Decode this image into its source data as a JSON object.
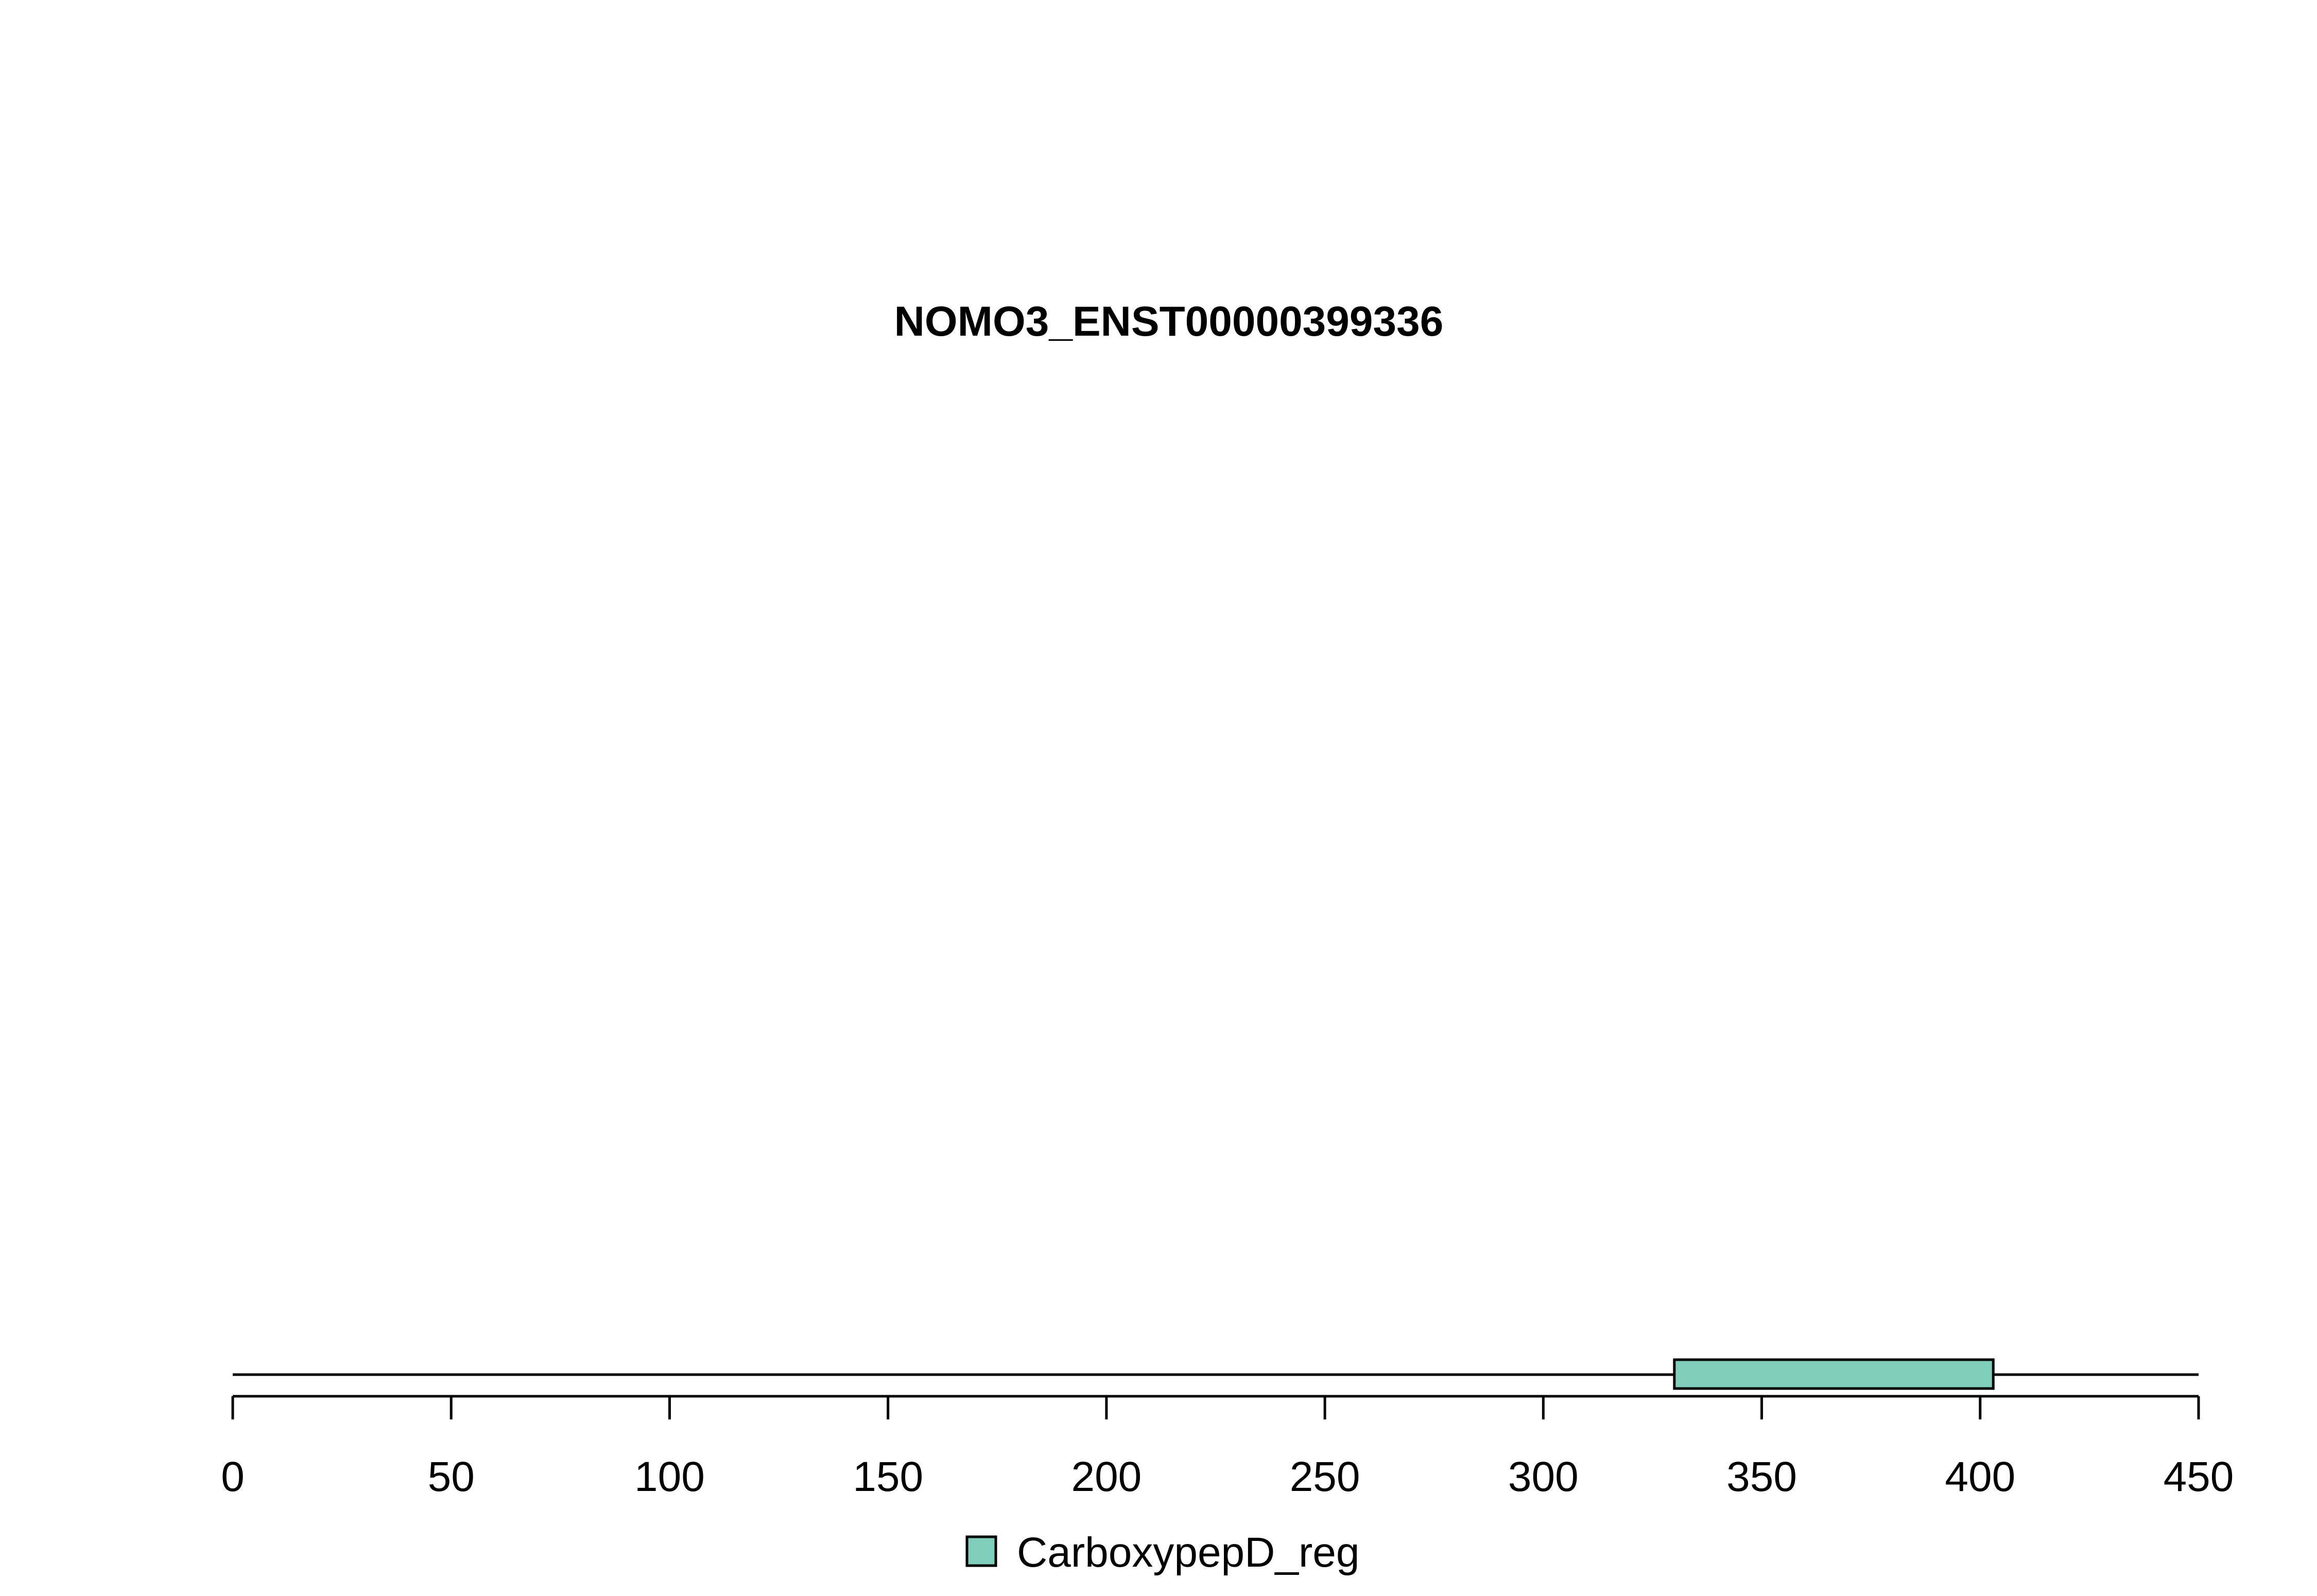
{
  "chart_data": {
    "type": "bar",
    "title": "NOMO3_ENST00000399336",
    "xlabel": "",
    "ylabel": "",
    "xlim": [
      0,
      450
    ],
    "x_ticks": [
      0,
      50,
      100,
      150,
      200,
      250,
      300,
      350,
      400,
      450
    ],
    "x_tick_labels": [
      "0",
      "50",
      "100",
      "150",
      "200",
      "250",
      "300",
      "350",
      "400",
      "450"
    ],
    "protein_length": 450,
    "domains": [
      {
        "name": "CarboxypepD_reg",
        "start": 330,
        "end": 403,
        "color": "#7fcdbb"
      }
    ],
    "legend": {
      "placement": "bottom-center",
      "entries": [
        {
          "label": "CarboxypepD_reg",
          "color": "#7fcdbb"
        }
      ]
    },
    "grid": false
  }
}
